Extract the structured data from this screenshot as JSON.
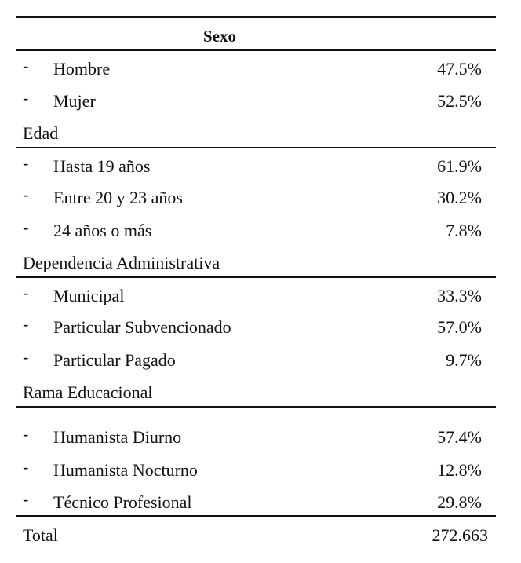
{
  "table": {
    "marker": "-",
    "sections": [
      {
        "title": "Sexo",
        "rows": [
          {
            "label": "Hombre",
            "value": "47.5%"
          },
          {
            "label": "Mujer",
            "value": "52.5%"
          }
        ]
      },
      {
        "title": "Edad",
        "rows": [
          {
            "label": "Hasta 19 años",
            "value": "61.9%"
          },
          {
            "label": "Entre 20 y 23 años",
            "value": "30.2%"
          },
          {
            "label": "24 años o más",
            "value": "7.8%"
          }
        ]
      },
      {
        "title": "Dependencia Administrativa",
        "rows": [
          {
            "label": "Municipal",
            "value": "33.3%"
          },
          {
            "label": "Particular Subvencionado",
            "value": "57.0%"
          },
          {
            "label": "Particular Pagado",
            "value": "9.7%"
          }
        ]
      },
      {
        "title": "Rama Educacional",
        "rows": [
          {
            "label": "Humanista Diurno",
            "value": "57.4%"
          },
          {
            "label": "Humanista Nocturno",
            "value": "12.8%"
          },
          {
            "label": "Técnico Profesional",
            "value": "29.8%"
          }
        ]
      }
    ],
    "total": {
      "label": "Total",
      "value": "272.663"
    }
  }
}
